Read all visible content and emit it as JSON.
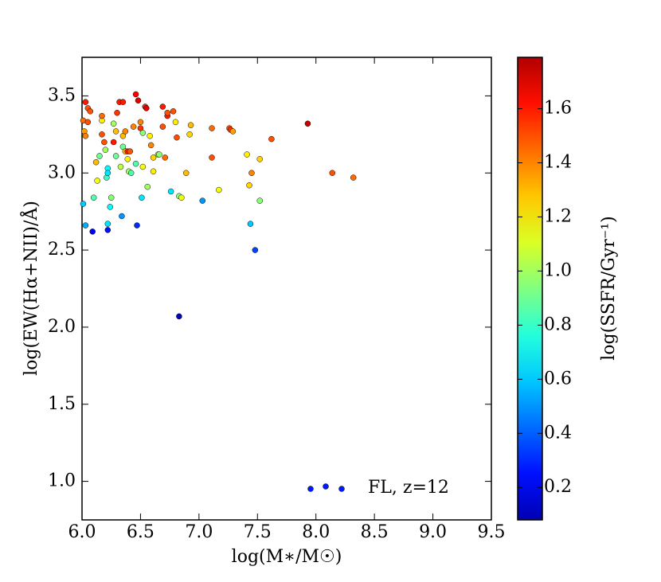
{
  "chart_data": {
    "type": "scatter",
    "x_label": "log(M∗/M☉)",
    "y_label": "log(EW(Hα+NII)/Å)",
    "colorbar_label": "log(SSFR/Gyr⁻¹)",
    "colormap": "jet",
    "clim": [
      0.08,
      1.79
    ],
    "cticks": [
      0.2,
      0.4,
      0.6,
      0.8,
      {
        "value": 1.0,
        "label": "1.0"
      },
      1.2,
      1.4,
      1.6
    ],
    "xlim": [
      6.0,
      9.5
    ],
    "xticks": [
      {
        "value": 6.0,
        "label": "6.0"
      },
      6.5,
      {
        "value": 7.0,
        "label": "7.0"
      },
      7.5,
      {
        "value": 8.0,
        "label": "8.0"
      },
      8.5,
      {
        "value": 9.0,
        "label": "9.0"
      },
      9.5
    ],
    "ylim": [
      0.75,
      3.75
    ],
    "yticks": [
      {
        "value": 1.0,
        "label": "1.0"
      },
      1.5,
      {
        "value": 2.0,
        "label": "2.0"
      },
      2.5,
      {
        "value": 3.0,
        "label": "3.0"
      },
      3.5
    ],
    "legend": "lower right",
    "series": [
      {
        "name": "FL, z=12",
        "x": [
          6.03,
          6.05,
          6.07,
          6.01,
          6.02,
          6.03,
          6.05,
          6.01,
          6.03,
          6.09,
          6.1,
          6.12,
          6.13,
          6.15,
          6.17,
          6.17,
          6.17,
          6.19,
          6.2,
          6.21,
          6.22,
          6.22,
          6.22,
          6.22,
          6.24,
          6.25,
          6.27,
          6.27,
          6.29,
          6.29,
          6.3,
          6.32,
          6.33,
          6.34,
          6.35,
          6.35,
          6.35,
          6.37,
          6.37,
          6.39,
          6.39,
          6.4,
          6.41,
          6.42,
          6.44,
          6.46,
          6.46,
          6.47,
          6.48,
          6.5,
          6.5,
          6.51,
          6.52,
          6.52,
          6.54,
          6.55,
          6.56,
          6.58,
          6.59,
          6.61,
          6.61,
          6.65,
          6.66,
          6.69,
          6.69,
          6.71,
          6.73,
          6.73,
          6.76,
          6.78,
          6.8,
          6.81,
          6.83,
          6.83,
          6.85,
          6.89,
          6.92,
          6.93,
          7.03,
          7.11,
          7.11,
          7.17,
          7.26,
          7.27,
          7.29,
          7.41,
          7.43,
          7.44,
          7.45,
          7.48,
          7.52,
          7.52,
          7.62,
          7.93,
          8.14,
          8.32
        ],
        "values": [
          3.46,
          3.42,
          3.4,
          3.34,
          3.27,
          3.24,
          3.33,
          2.8,
          2.66,
          2.62,
          2.84,
          3.07,
          2.95,
          3.11,
          3.34,
          3.37,
          3.25,
          3.2,
          3.15,
          2.97,
          3.03,
          3.0,
          2.67,
          2.63,
          2.78,
          2.84,
          3.32,
          3.2,
          3.11,
          3.27,
          3.39,
          3.46,
          3.04,
          2.72,
          3.46,
          3.24,
          3.17,
          3.27,
          3.14,
          3.14,
          3.09,
          3.01,
          3.14,
          3.0,
          3.3,
          3.51,
          3.06,
          2.66,
          3.47,
          3.29,
          3.33,
          2.84,
          3.26,
          3.04,
          3.43,
          3.42,
          2.91,
          3.24,
          3.18,
          3.1,
          3.01,
          3.12,
          3.12,
          3.3,
          3.43,
          3.1,
          3.37,
          3.39,
          2.88,
          3.4,
          3.33,
          3.23,
          2.85,
          2.07,
          2.84,
          3.0,
          3.25,
          3.31,
          2.82,
          3.29,
          3.1,
          2.89,
          3.29,
          3.28,
          3.27,
          3.12,
          2.92,
          2.67,
          3.0,
          2.5,
          3.09,
          2.82,
          3.22,
          3.32,
          3.0,
          2.97
        ],
        "c": [
          1.6,
          1.5,
          1.5,
          1.45,
          1.35,
          1.4,
          1.5,
          0.6,
          0.55,
          0.2,
          0.85,
          1.3,
          1.15,
          0.9,
          1.2,
          1.45,
          1.5,
          1.5,
          1.0,
          0.8,
          0.7,
          0.65,
          0.65,
          0.25,
          0.7,
          0.95,
          1.0,
          1.6,
          0.9,
          1.3,
          1.55,
          1.6,
          1.05,
          0.5,
          1.6,
          1.3,
          0.9,
          1.4,
          1.3,
          1.6,
          1.2,
          1.0,
          1.5,
          0.85,
          1.4,
          1.65,
          0.85,
          0.3,
          1.7,
          1.55,
          1.4,
          0.65,
          0.95,
          1.15,
          1.55,
          1.7,
          1.0,
          1.2,
          1.4,
          1.25,
          1.2,
          1.05,
          0.95,
          1.5,
          1.6,
          1.45,
          1.6,
          1.5,
          0.65,
          1.5,
          1.2,
          1.5,
          0.95,
          0.1,
          1.15,
          1.3,
          1.25,
          1.3,
          0.5,
          1.45,
          1.5,
          1.15,
          1.5,
          1.55,
          1.35,
          1.2,
          1.25,
          0.6,
          1.4,
          0.35,
          1.25,
          0.95,
          1.5,
          1.75,
          1.5,
          1.45
        ]
      }
    ]
  }
}
